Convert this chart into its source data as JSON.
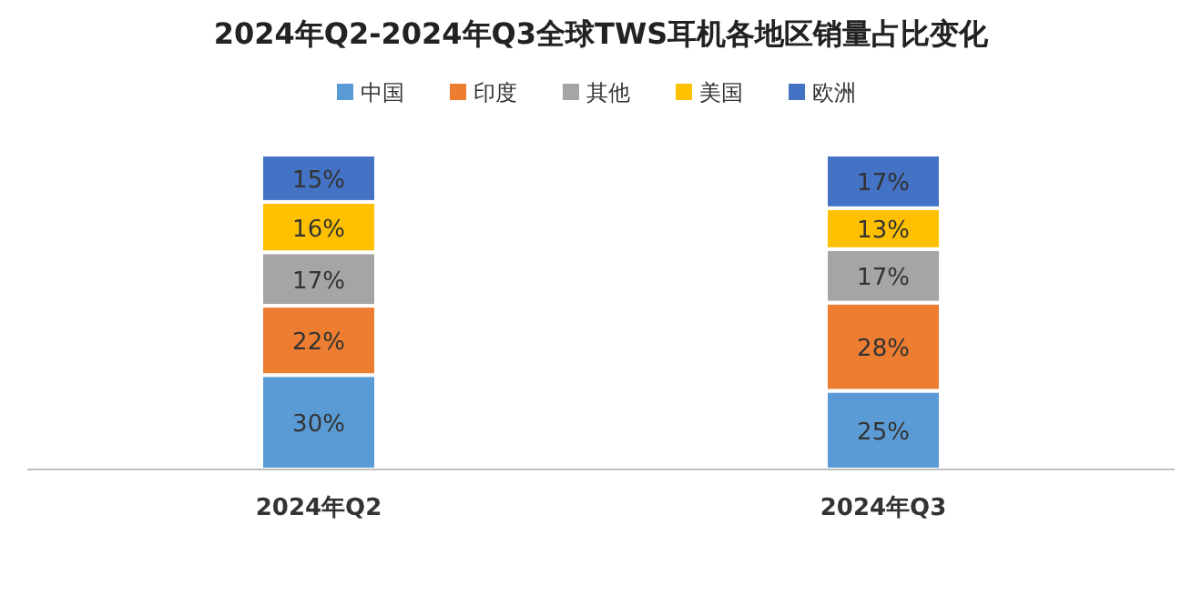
{
  "chart_data": {
    "type": "bar",
    "stacked": true,
    "title": "2024年Q2-2024年Q3全球TWS耳机各地区销量占比变化",
    "categories": [
      "2024年Q2",
      "2024年Q3"
    ],
    "legend": "top",
    "series": [
      {
        "name": "中国",
        "color": "#5b9bd5",
        "values": [
          30,
          25
        ],
        "value_labels": [
          "30%",
          "25%"
        ]
      },
      {
        "name": "印度",
        "color": "#ed7d31",
        "values": [
          22,
          28
        ],
        "value_labels": [
          "22%",
          "28%"
        ]
      },
      {
        "name": "其他",
        "color": "#a5a5a5",
        "values": [
          17,
          17
        ],
        "value_labels": [
          "17%",
          "17%"
        ]
      },
      {
        "name": "美国",
        "color": "#ffc000",
        "values": [
          16,
          13
        ],
        "value_labels": [
          "16%",
          "13%"
        ]
      },
      {
        "name": "欧洲",
        "color": "#4472c4",
        "values": [
          15,
          17
        ],
        "value_labels": [
          "15%",
          "17%"
        ]
      }
    ]
  }
}
